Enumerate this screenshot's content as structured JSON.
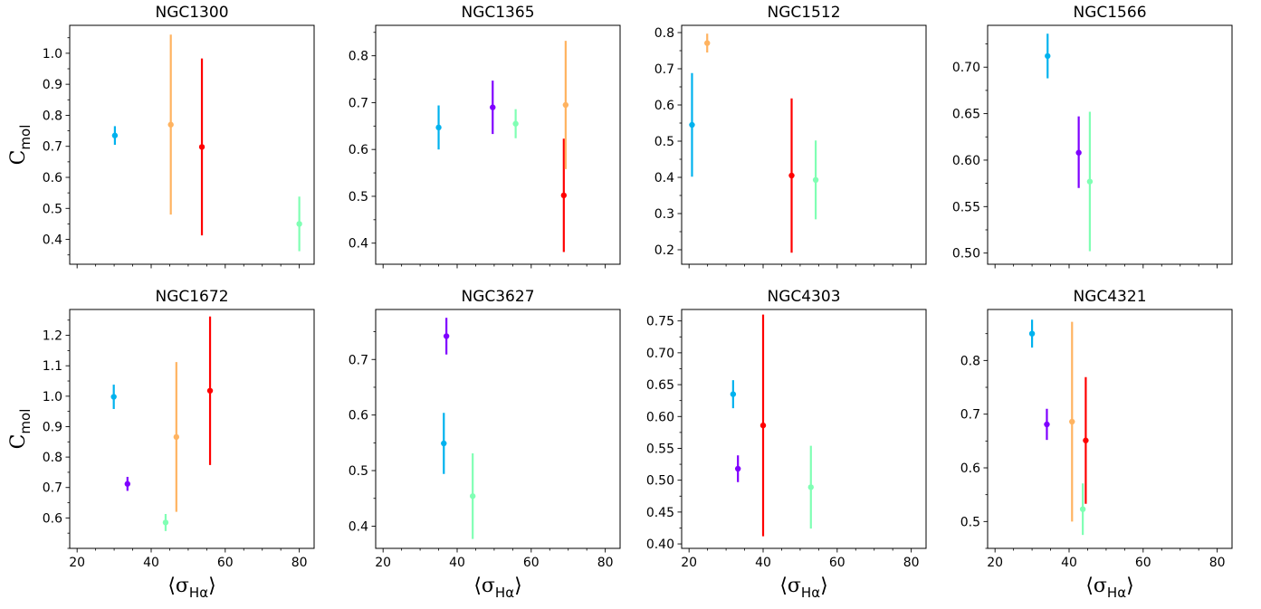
{
  "chart_data": {
    "type": "scatter",
    "shared_x": true,
    "xlim": [
      18,
      84
    ],
    "xticks": [
      20,
      40,
      60,
      80
    ],
    "xlabel": "⟨σHα⟩",
    "ylabel": "Cmol",
    "error_bars": true,
    "grid": false,
    "colors": {
      "cyan": "#00b2ee",
      "purple": "#7f00ff",
      "mint": "#80ffb4",
      "orange": "#ffb360",
      "red": "#ff0000"
    },
    "panels": [
      {
        "title": "NGC1300",
        "ylim": [
          0.32,
          1.09
        ],
        "yticks": [
          "0.4",
          "0.5",
          "0.6",
          "0.7",
          "0.8",
          "0.9",
          "1.0"
        ],
        "points": [
          {
            "color": "cyan",
            "x": 30.2,
            "y": 0.735,
            "ylo": 0.705,
            "yhi": 0.765
          },
          {
            "color": "orange",
            "x": 45.3,
            "y": 0.77,
            "ylo": 0.48,
            "yhi": 1.06
          },
          {
            "color": "red",
            "x": 53.7,
            "y": 0.698,
            "ylo": 0.413,
            "yhi": 0.983
          },
          {
            "color": "mint",
            "x": 80.0,
            "y": 0.45,
            "ylo": 0.362,
            "yhi": 0.538
          }
        ]
      },
      {
        "title": "NGC1365",
        "ylim": [
          0.355,
          0.865
        ],
        "yticks": [
          "0.4",
          "0.5",
          "0.6",
          "0.7",
          "0.8"
        ],
        "points": [
          {
            "color": "cyan",
            "x": 35.0,
            "y": 0.647,
            "ylo": 0.6,
            "yhi": 0.694
          },
          {
            "color": "purple",
            "x": 49.6,
            "y": 0.69,
            "ylo": 0.633,
            "yhi": 0.747
          },
          {
            "color": "mint",
            "x": 55.8,
            "y": 0.655,
            "ylo": 0.624,
            "yhi": 0.686
          },
          {
            "color": "red",
            "x": 68.8,
            "y": 0.502,
            "ylo": 0.381,
            "yhi": 0.623
          },
          {
            "color": "orange",
            "x": 69.3,
            "y": 0.695,
            "ylo": 0.558,
            "yhi": 0.832
          }
        ]
      },
      {
        "title": "NGC1512",
        "ylim": [
          0.16,
          0.82
        ],
        "yticks": [
          "0.2",
          "0.3",
          "0.4",
          "0.5",
          "0.6",
          "0.7",
          "0.8"
        ],
        "points": [
          {
            "color": "cyan",
            "x": 20.8,
            "y": 0.545,
            "ylo": 0.402,
            "yhi": 0.688
          },
          {
            "color": "orange",
            "x": 24.9,
            "y": 0.771,
            "ylo": 0.745,
            "yhi": 0.797
          },
          {
            "color": "red",
            "x": 47.7,
            "y": 0.405,
            "ylo": 0.192,
            "yhi": 0.618
          },
          {
            "color": "mint",
            "x": 54.2,
            "y": 0.393,
            "ylo": 0.284,
            "yhi": 0.502
          }
        ]
      },
      {
        "title": "NGC1566",
        "ylim": [
          0.488,
          0.745
        ],
        "yticks": [
          "0.50",
          "0.55",
          "0.60",
          "0.65",
          "0.70"
        ],
        "points": [
          {
            "color": "cyan",
            "x": 34.2,
            "y": 0.712,
            "ylo": 0.688,
            "yhi": 0.736
          },
          {
            "color": "purple",
            "x": 42.6,
            "y": 0.608,
            "ylo": 0.57,
            "yhi": 0.647
          },
          {
            "color": "mint",
            "x": 45.6,
            "y": 0.577,
            "ylo": 0.502,
            "yhi": 0.652
          }
        ]
      },
      {
        "title": "NGC1672",
        "ylim": [
          0.5,
          1.285
        ],
        "yticks": [
          "0.6",
          "0.7",
          "0.8",
          "0.9",
          "1.0",
          "1.1",
          "1.2"
        ],
        "points": [
          {
            "color": "cyan",
            "x": 29.9,
            "y": 0.998,
            "ylo": 0.958,
            "yhi": 1.038
          },
          {
            "color": "purple",
            "x": 33.6,
            "y": 0.712,
            "ylo": 0.689,
            "yhi": 0.735
          },
          {
            "color": "mint",
            "x": 43.9,
            "y": 0.585,
            "ylo": 0.557,
            "yhi": 0.613
          },
          {
            "color": "orange",
            "x": 46.8,
            "y": 0.866,
            "ylo": 0.62,
            "yhi": 1.112
          },
          {
            "color": "red",
            "x": 55.9,
            "y": 1.018,
            "ylo": 0.774,
            "yhi": 1.262
          }
        ]
      },
      {
        "title": "NGC3627",
        "ylim": [
          0.36,
          0.79
        ],
        "yticks": [
          "0.4",
          "0.5",
          "0.6",
          "0.7"
        ],
        "points": [
          {
            "color": "purple",
            "x": 37.1,
            "y": 0.742,
            "ylo": 0.709,
            "yhi": 0.775
          },
          {
            "color": "cyan",
            "x": 36.4,
            "y": 0.549,
            "ylo": 0.494,
            "yhi": 0.604
          },
          {
            "color": "mint",
            "x": 44.2,
            "y": 0.454,
            "ylo": 0.377,
            "yhi": 0.531
          }
        ]
      },
      {
        "title": "NGC4303",
        "ylim": [
          0.393,
          0.768
        ],
        "yticks": [
          "0.40",
          "0.45",
          "0.50",
          "0.55",
          "0.60",
          "0.65",
          "0.70",
          "0.75"
        ],
        "points": [
          {
            "color": "cyan",
            "x": 31.9,
            "y": 0.635,
            "ylo": 0.613,
            "yhi": 0.657
          },
          {
            "color": "purple",
            "x": 33.2,
            "y": 0.518,
            "ylo": 0.497,
            "yhi": 0.539
          },
          {
            "color": "red",
            "x": 40.0,
            "y": 0.586,
            "ylo": 0.412,
            "yhi": 0.76
          },
          {
            "color": "mint",
            "x": 52.9,
            "y": 0.489,
            "ylo": 0.424,
            "yhi": 0.554
          }
        ]
      },
      {
        "title": "NGC4321",
        "ylim": [
          0.45,
          0.895
        ],
        "yticks": [
          "0.5",
          "0.6",
          "0.7",
          "0.8"
        ],
        "points": [
          {
            "color": "cyan",
            "x": 30.0,
            "y": 0.85,
            "ylo": 0.824,
            "yhi": 0.876
          },
          {
            "color": "purple",
            "x": 34.0,
            "y": 0.681,
            "ylo": 0.652,
            "yhi": 0.71
          },
          {
            "color": "orange",
            "x": 40.8,
            "y": 0.686,
            "ylo": 0.5,
            "yhi": 0.872
          },
          {
            "color": "red",
            "x": 44.5,
            "y": 0.651,
            "ylo": 0.533,
            "yhi": 0.769
          },
          {
            "color": "mint",
            "x": 43.7,
            "y": 0.523,
            "ylo": 0.475,
            "yhi": 0.571
          }
        ]
      }
    ]
  }
}
